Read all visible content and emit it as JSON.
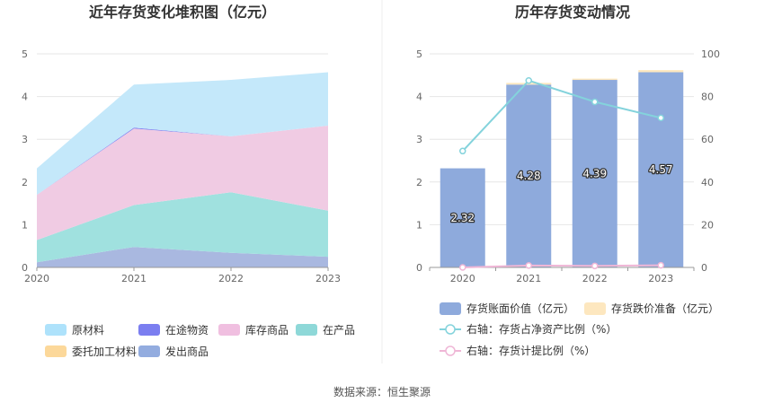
{
  "source_text": "数据来源：恒生聚源",
  "chart_data": [
    {
      "type": "area",
      "title": "近年存货变化堆积图（亿元）",
      "x": [
        "2020",
        "2021",
        "2022",
        "2023"
      ],
      "ylim": [
        0,
        5
      ],
      "yticks": [
        "0",
        "1",
        "2",
        "3",
        "4",
        "5"
      ],
      "grid": true,
      "stacked": true,
      "legend_position": "bottom",
      "series": [
        {
          "name": "发出商品",
          "color": "#a9b8e0",
          "values": [
            0.12,
            0.48,
            0.34,
            0.25
          ]
        },
        {
          "name": "在产品",
          "color": "#a0e1df",
          "values": [
            0.52,
            0.98,
            1.42,
            1.08
          ]
        },
        {
          "name": "库存商品",
          "color": "#f0cbe3",
          "values": [
            1.06,
            1.79,
            1.31,
            1.99
          ]
        },
        {
          "name": "在途物资",
          "color": "#7b7ef0",
          "values": [
            0.0,
            0.02,
            0.0,
            0.0
          ]
        },
        {
          "name": "原材料",
          "color": "#c4e8fa",
          "values": [
            0.62,
            1.01,
            1.32,
            1.25
          ]
        },
        {
          "name": "委托加工材料",
          "color": "#fcd89a",
          "values": [
            0.0,
            0.0,
            0.0,
            0.0
          ]
        }
      ],
      "legend": [
        {
          "name": "原材料",
          "color": "#aee2fb"
        },
        {
          "name": "在途物资",
          "color": "#7b7ef0"
        },
        {
          "name": "库存商品",
          "color": "#f0bfe0"
        },
        {
          "name": "在产品",
          "color": "#8ed8d8"
        },
        {
          "name": "委托加工材料",
          "color": "#fcd89a"
        },
        {
          "name": "发出商品",
          "color": "#93acdf"
        }
      ]
    },
    {
      "type": "bar",
      "title": "历年存货变动情况",
      "categories": [
        "2020",
        "2021",
        "2022",
        "2023"
      ],
      "ylim": [
        0,
        5
      ],
      "yticks": [
        "0",
        "1",
        "2",
        "3",
        "4",
        "5"
      ],
      "y2lim": [
        0,
        100
      ],
      "y2ticks": [
        "0",
        "20",
        "40",
        "60",
        "80",
        "100"
      ],
      "grid": true,
      "legend_position": "bottom",
      "series": [
        {
          "name": "存货账面价值（亿元）",
          "kind": "bar",
          "color": "#8eaadc",
          "values": [
            2.32,
            4.28,
            4.39,
            4.57
          ],
          "labels": [
            "2.32",
            "4.28",
            "4.39",
            "4.57"
          ]
        },
        {
          "name": "存货跌价准备（亿元）",
          "kind": "bar",
          "color": "#fde7bf",
          "values": [
            0.0,
            0.04,
            0.03,
            0.05
          ]
        },
        {
          "name": "右轴：存货占净资产比例（%）",
          "kind": "line",
          "axis": "right",
          "color": "#84d3dc",
          "values": [
            54.5,
            87.5,
            77.5,
            70.0
          ]
        },
        {
          "name": "右轴：存货计提比例（%）",
          "kind": "line",
          "axis": "right",
          "color": "#efb6d6",
          "values": [
            0.0,
            0.9,
            0.7,
            1.0
          ]
        }
      ]
    }
  ]
}
